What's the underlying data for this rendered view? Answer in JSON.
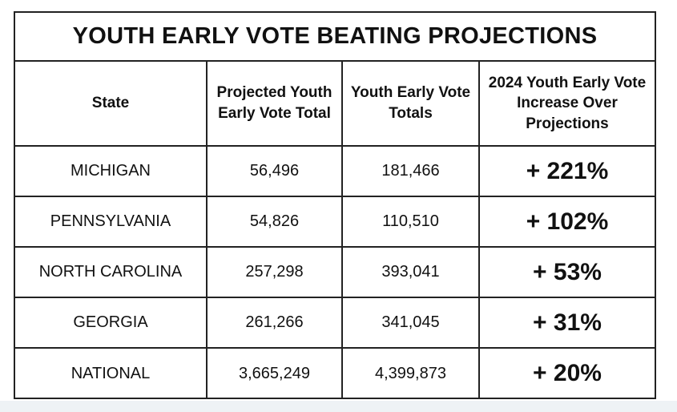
{
  "chart_data": {
    "type": "table",
    "title": "YOUTH EARLY VOTE BEATING PROJECTIONS",
    "columns": [
      "State",
      "Projected Youth Early Vote Total",
      "Youth Early Vote Totals",
      "2024 Youth Early Vote Increase Over Projections"
    ],
    "rows": [
      {
        "state": "MICHIGAN",
        "projected": "56,496",
        "actual": "181,466",
        "increase": "+ 221%"
      },
      {
        "state": "PENNSYLVANIA",
        "projected": "54,826",
        "actual": "110,510",
        "increase": "+ 102%"
      },
      {
        "state": "NORTH CAROLINA",
        "projected": "257,298",
        "actual": "393,041",
        "increase": "+ 53%"
      },
      {
        "state": "GEORGIA",
        "projected": "261,266",
        "actual": "341,045",
        "increase": "+ 31%"
      },
      {
        "state": "NATIONAL",
        "projected": "3,665,249",
        "actual": "4,399,873",
        "increase": "+ 20%"
      }
    ]
  }
}
